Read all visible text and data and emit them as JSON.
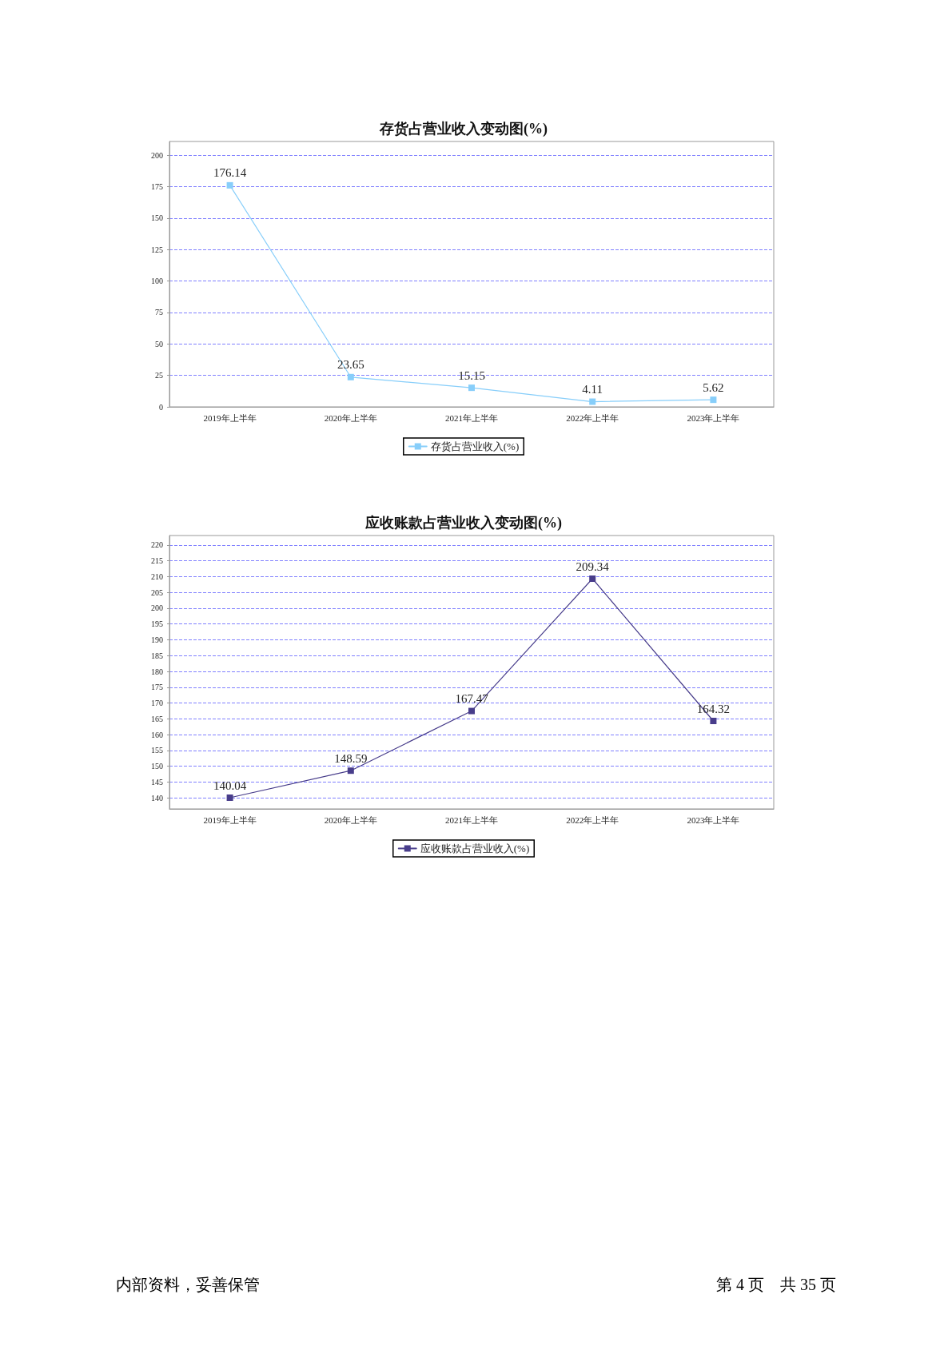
{
  "chart_data": [
    {
      "type": "line",
      "title": "存货占营业收入变动图(%)",
      "categories": [
        "2019年上半年",
        "2020年上半年",
        "2021年上半年",
        "2022年上半年",
        "2023年上半年"
      ],
      "series": [
        {
          "name": "存货占营业收入(%)",
          "color": "#87cefa",
          "values": [
            176.14,
            23.65,
            15.15,
            4.11,
            5.62
          ]
        }
      ],
      "ylim": [
        0,
        211
      ],
      "yticks": [
        0,
        25,
        50,
        75,
        100,
        125,
        150,
        175,
        200
      ],
      "grid": "y",
      "legend": "bottom",
      "marker": "square",
      "line_style": "solid",
      "data_labels": true
    },
    {
      "type": "line",
      "title": "应收账款占营业收入变动图(%)",
      "categories": [
        "2019年上半年",
        "2020年上半年",
        "2021年上半年",
        "2022年上半年",
        "2023年上半年"
      ],
      "series": [
        {
          "name": "应收账款占营业收入(%)",
          "color": "#483d8b",
          "values": [
            140.04,
            148.59,
            167.47,
            209.34,
            164.32
          ]
        }
      ],
      "ylim": [
        136.5,
        223
      ],
      "yticks": [
        140,
        145,
        150,
        155,
        160,
        165,
        170,
        175,
        180,
        185,
        190,
        195,
        200,
        205,
        210,
        215,
        220
      ],
      "grid": "y",
      "legend": "bottom",
      "marker": "square",
      "line_style": "solid",
      "data_labels": true,
      "annotations": [
        "内部资料，妥善保管",
        "第 4 页　共 35 页"
      ]
    }
  ]
}
